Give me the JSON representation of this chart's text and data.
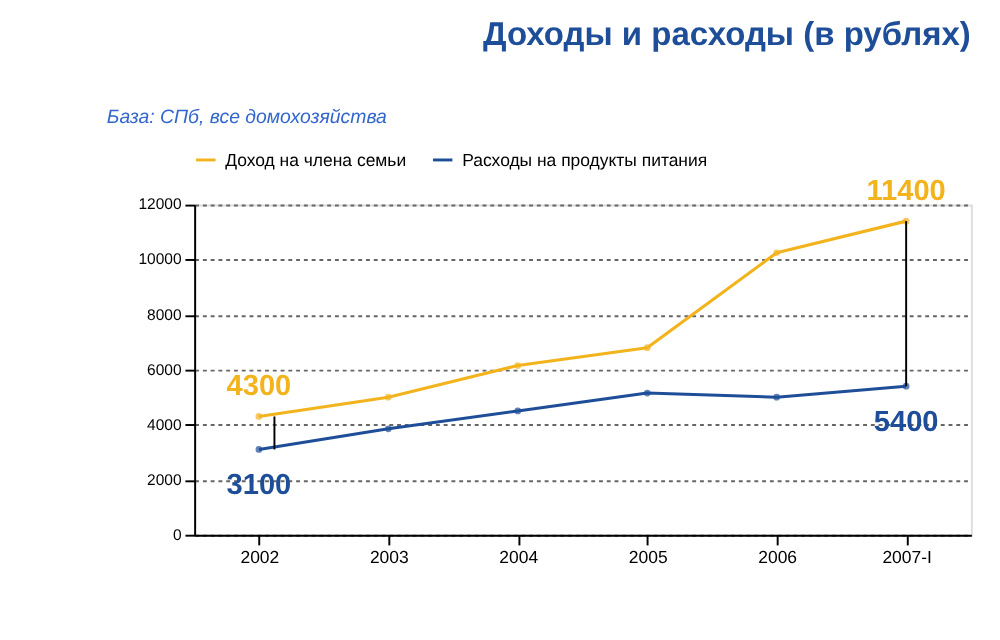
{
  "chart_data": {
    "type": "line",
    "title": "Доходы и расходы (в рублях)",
    "subtitle": "База: СПб, все домохозяйства",
    "categories": [
      "2002",
      "2003",
      "2004",
      "2005",
      "2006",
      "2007-I"
    ],
    "series": [
      {
        "name": "Доход на члена семьи",
        "color": "#f2b31c",
        "values": [
          4300,
          5000,
          6150,
          6800,
          10250,
          11400
        ],
        "value_labels": [
          "4300",
          null,
          null,
          null,
          null,
          "11400"
        ]
      },
      {
        "name": "Расходы на продукты питания",
        "color": "#1f4e99",
        "values": [
          3100,
          3850,
          4500,
          5150,
          5000,
          5400
        ],
        "value_labels": [
          "3100",
          null,
          null,
          null,
          null,
          "5400"
        ]
      }
    ],
    "ylim": [
      0,
      12000
    ],
    "yticks": [
      0,
      2000,
      4000,
      6000,
      8000,
      10000,
      12000
    ],
    "grid": "y",
    "legend": "top",
    "marker": "circle",
    "line_style": "solid"
  }
}
